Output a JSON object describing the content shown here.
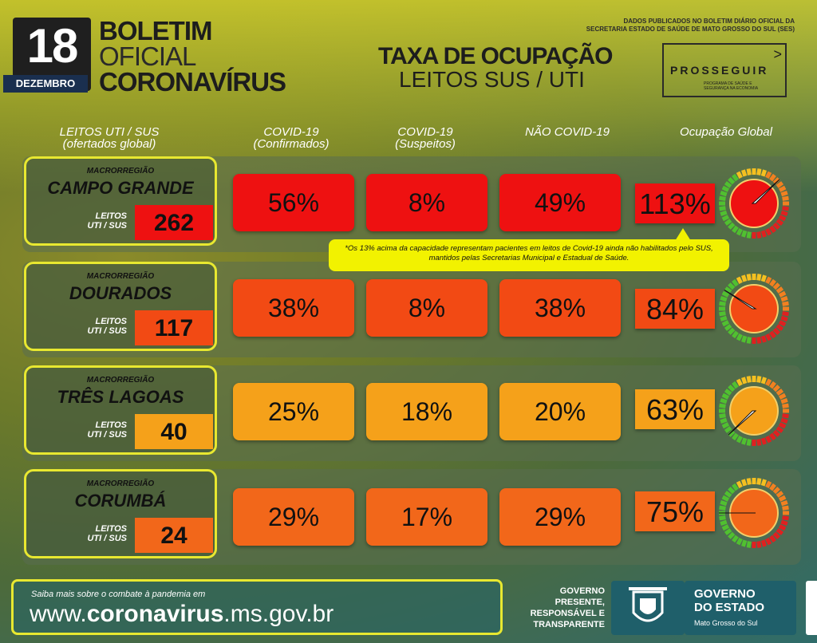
{
  "header": {
    "day": "18",
    "month": "DEZEMBRO",
    "title_line1": "BOLETIM",
    "title_line2": "OFICIAL",
    "title_line3": "CORONAVÍRUS",
    "source_line1": "DADOS PUBLICADOS NO BOLETIM DIÁRIO OFICIAL DA",
    "source_line2": "SECRETARIA ESTADO DE SAÚDE DE MATO GROSSO DO SUL (SES)",
    "subject_line1": "TAXA DE OCUPAÇÃO",
    "subject_line2": "LEITOS SUS / UTI",
    "prosseguir": "PROSSEGUIR",
    "prosseguir_sub": "PROGRAMA DE SAÚDE E SEGURANÇA NA ECONOMIA"
  },
  "columns": {
    "leitos": "LEITOS UTI / SUS",
    "leitos_sub": "(ofertados global)",
    "covid_conf": "COVID-19",
    "covid_conf_sub": "(Confirmados)",
    "covid_susp": "COVID-19",
    "covid_susp_sub": "(Suspeitos)",
    "nao_covid": "NÃO COVID-19",
    "global": "Ocupação Global"
  },
  "rows": [
    {
      "macro": "MACRORREGIÃO",
      "name": "CAMPO GRANDE",
      "leitos_label_1": "LEITOS",
      "leitos_label_2": "UTI / SUS",
      "leitos": "262",
      "covid_conf": "56%",
      "covid_susp": "8%",
      "nao_covid": "49%",
      "global": "113%",
      "global_value": 113,
      "color": "#ee1111"
    },
    {
      "macro": "MACRORREGIÃO",
      "name": "DOURADOS",
      "leitos_label_1": "LEITOS",
      "leitos_label_2": "UTI / SUS",
      "leitos": "117",
      "covid_conf": "38%",
      "covid_susp": "8%",
      "nao_covid": "38%",
      "global": "84%",
      "global_value": 84,
      "color": "#f24a14"
    },
    {
      "macro": "MACRORREGIÃO",
      "name": "TRÊS LAGOAS",
      "leitos_label_1": "LEITOS",
      "leitos_label_2": "UTI / SUS",
      "leitos": "40",
      "covid_conf": "25%",
      "covid_susp": "18%",
      "nao_covid": "20%",
      "global": "63%",
      "global_value": 63,
      "color": "#f5a11a"
    },
    {
      "macro": "MACRORREGIÃO",
      "name": "CORUMBÁ",
      "leitos_label_1": "LEITOS",
      "leitos_label_2": "UTI / SUS",
      "leitos": "24",
      "covid_conf": "29%",
      "covid_susp": "17%",
      "nao_covid": "29%",
      "global": "75%",
      "global_value": 75,
      "color": "#f2671a"
    }
  ],
  "note": "*Os 13% acima da capacidade representam pacientes em leitos de Covid-19 ainda não habilitados pelo SUS, mantidos pelas Secretarias Municipal e Estadual de Saúde.",
  "footer": {
    "small": "Saiba mais sobre o combate à pandemia em",
    "url_prefix": "www.",
    "url_bold": "coronavirus",
    "url_suffix": ".ms.gov.br",
    "gov_slogan_1": "GOVERNO",
    "gov_slogan_2": "PRESENTE,",
    "gov_slogan_3": "RESPONSÁVEL E",
    "gov_slogan_4": "TRANSPARENTE",
    "gov_name_1": "GOVERNO",
    "gov_name_2": "DO ESTADO",
    "gov_sub": "Mato Grosso do Sul"
  }
}
